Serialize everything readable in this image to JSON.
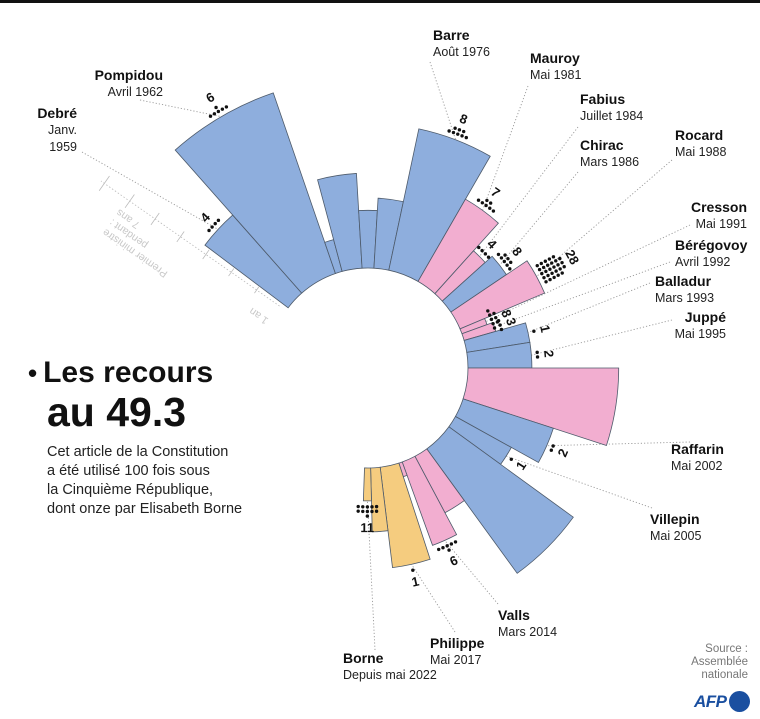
{
  "title": {
    "bullet": "•",
    "line1": "Les recours",
    "line2": "au 49.3"
  },
  "description": [
    "Cet article de la Constitution",
    "a été utilisé 100 fois sous",
    "la Cinquième République,",
    "dont onze par Elisabeth Borne"
  ],
  "source": {
    "line1": "Source :",
    "line2": "Assemblée",
    "line3": "nationale"
  },
  "logo": "AFP",
  "colors": {
    "blue": "#8eaedd",
    "pink": "#f2aed0",
    "orange": "#f5cc7f",
    "brand": "#1a4fa0"
  },
  "chart_data": {
    "type": "radial-bar",
    "radial_axis": {
      "label": [
        "Premier ministre",
        "pendant :",
        "7 ans"
      ],
      "min_label": "1 an",
      "unit": "ans",
      "range": [
        0,
        7
      ],
      "ticks": [
        1,
        2,
        3,
        4,
        5,
        6,
        7
      ]
    },
    "wedges": [
      {
        "name": "Debré",
        "date": [
          "Janv.",
          "1959"
        ],
        "uses": 4,
        "years": 3.2,
        "color": "blue"
      },
      {
        "name": "Pompidou",
        "date": [
          "Avril 1962"
        ],
        "uses": 6,
        "years": 6.0,
        "color": "blue"
      },
      {
        "years": 0.9,
        "color": "blue"
      },
      {
        "years": 2.9,
        "color": "blue"
      },
      {
        "years": 1.7,
        "color": "blue"
      },
      {
        "years": 2.1,
        "color": "blue"
      },
      {
        "name": "Barre",
        "date": [
          "Août 1976"
        ],
        "uses": 8,
        "years": 4.5,
        "color": "blue"
      },
      {
        "name": "Mauroy",
        "date": [
          "Mai 1981"
        ],
        "uses": 7,
        "years": 2.9,
        "color": "pink"
      },
      {
        "name": "Fabius",
        "date": [
          "Juillet 1984"
        ],
        "uses": 4,
        "years": 1.7,
        "color": "pink"
      },
      {
        "name": "Chirac",
        "date": [
          "Mars 1986"
        ],
        "uses": 8,
        "years": 2.0,
        "color": "blue"
      },
      {
        "name": "Rocard",
        "date": [
          "Mai 1988"
        ],
        "uses": 28,
        "years": 2.8,
        "color": "pink"
      },
      {
        "name": "Cresson",
        "date": [
          "Mai 1991"
        ],
        "uses": 8,
        "years": 0.7,
        "color": "pink"
      },
      {
        "name": "Bérégovoy",
        "date": [
          "Avril 1992"
        ],
        "uses": 3,
        "years": 0.9,
        "color": "pink"
      },
      {
        "name": "Balladur",
        "date": [
          "Mars 1993"
        ],
        "uses": 1,
        "years": 1.9,
        "color": "blue"
      },
      {
        "name": "Juppé",
        "date": [
          "Mai 1995"
        ],
        "uses": 2,
        "years": 1.9,
        "color": "blue"
      },
      {
        "years": 4.7,
        "color": "pink"
      },
      {
        "name": "Raffarin",
        "date": [
          "Mai 2002"
        ],
        "uses": 2,
        "years": 2.9,
        "color": "blue"
      },
      {
        "name": "Villepin",
        "date": [
          "Mai 2005"
        ],
        "uses": 1,
        "years": 1.9,
        "color": "blue"
      },
      {
        "years": 4.8,
        "color": "blue"
      },
      {
        "years": 1.9,
        "color": "pink"
      },
      {
        "name": "Valls",
        "date": [
          "Mars 2014"
        ],
        "uses": 6,
        "years": 2.7,
        "color": "pink"
      },
      {
        "years": 0.3,
        "color": "pink"
      },
      {
        "name": "Philippe",
        "date": [
          "Mai 2017"
        ],
        "uses": 1,
        "years": 3.1,
        "color": "orange"
      },
      {
        "years": 1.9,
        "color": "orange"
      },
      {
        "name": "Borne",
        "date": [
          "Depuis mai 2022"
        ],
        "uses": 11,
        "years": 0.9,
        "color": "orange"
      }
    ]
  }
}
